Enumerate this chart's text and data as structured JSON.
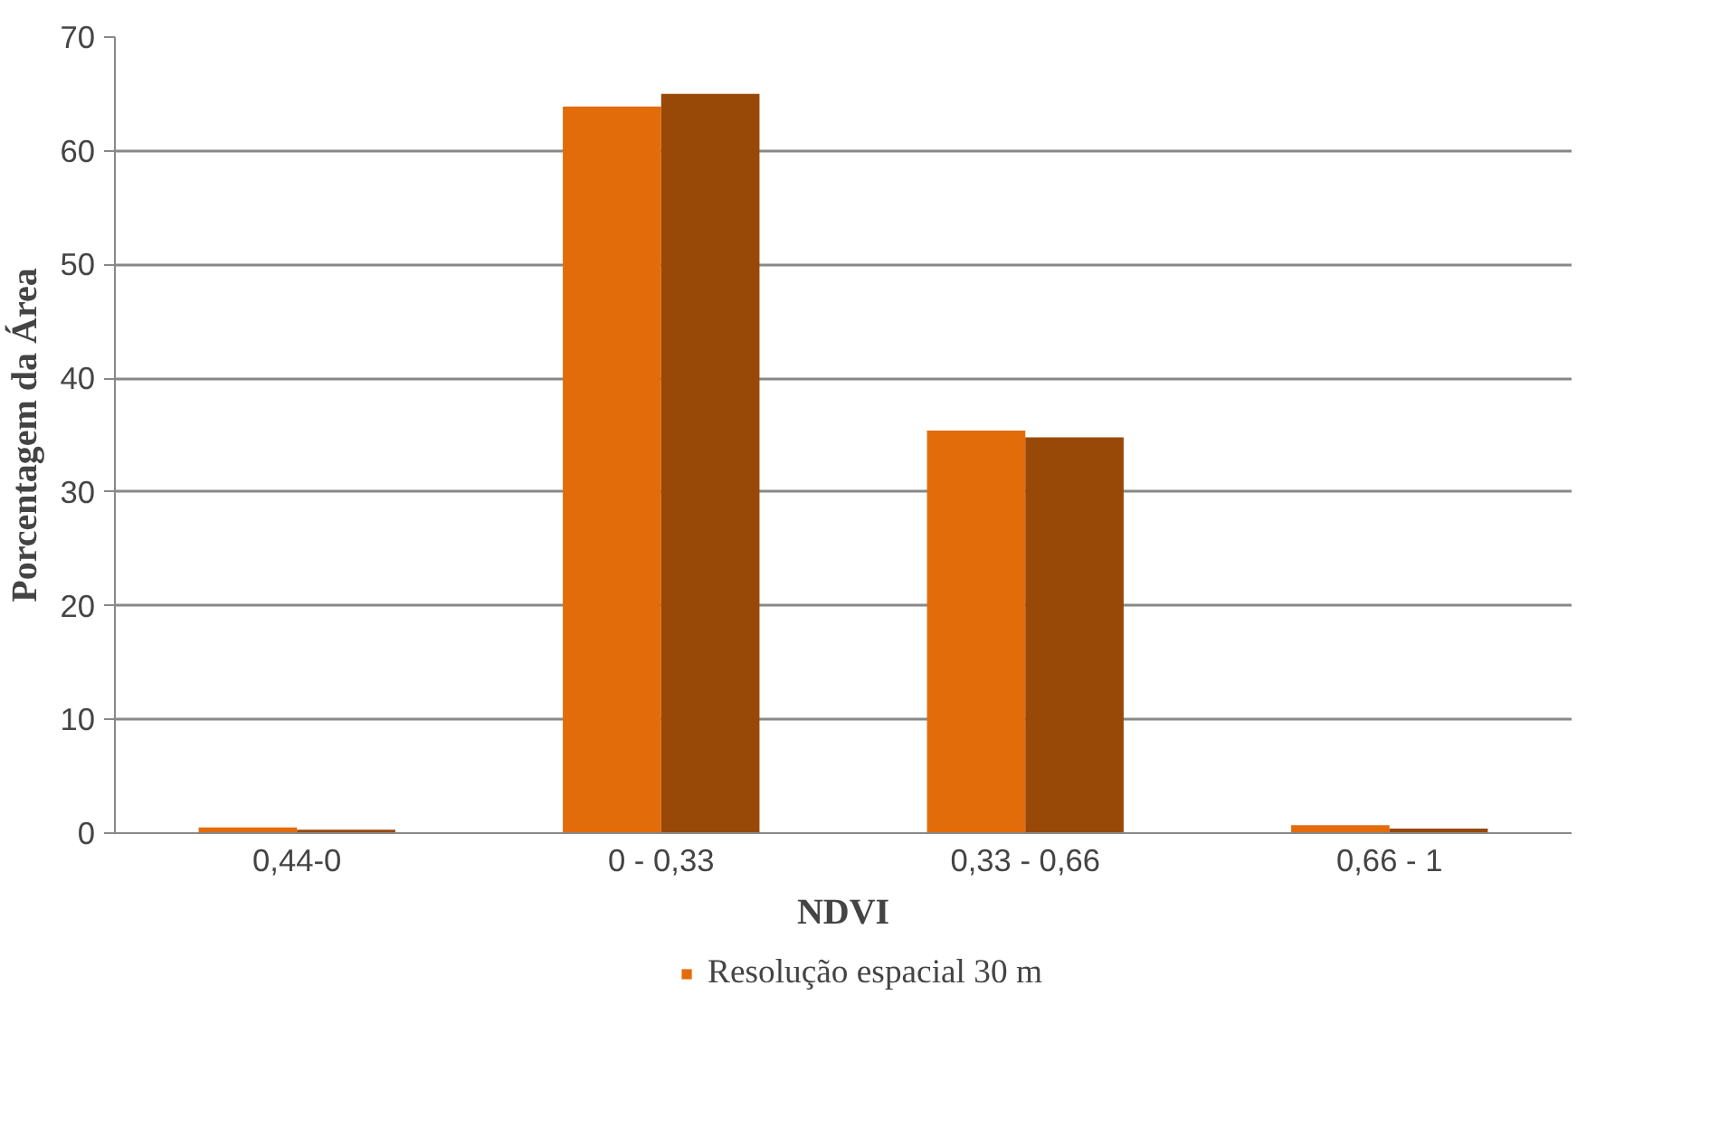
{
  "chart_data": {
    "type": "bar",
    "xlabel": "NDVI",
    "ylabel": "Porcentagem da Área",
    "categories": [
      "0,44-0",
      "0 - 0,33",
      "0,33 - 0,66",
      "0,66 - 1"
    ],
    "series": [
      {
        "name": "Resolução espacial 30 m",
        "color": "#e36c0a",
        "values": [
          0.5,
          63.9,
          35.4,
          0.7
        ]
      },
      {
        "color": "#984807",
        "values": [
          0.3,
          65.0,
          34.8,
          0.4
        ]
      }
    ],
    "ylim": [
      0,
      70
    ],
    "yticks": [
      0,
      10,
      20,
      30,
      40,
      50,
      60,
      70
    ],
    "grid": "y",
    "legend": "bottom"
  }
}
